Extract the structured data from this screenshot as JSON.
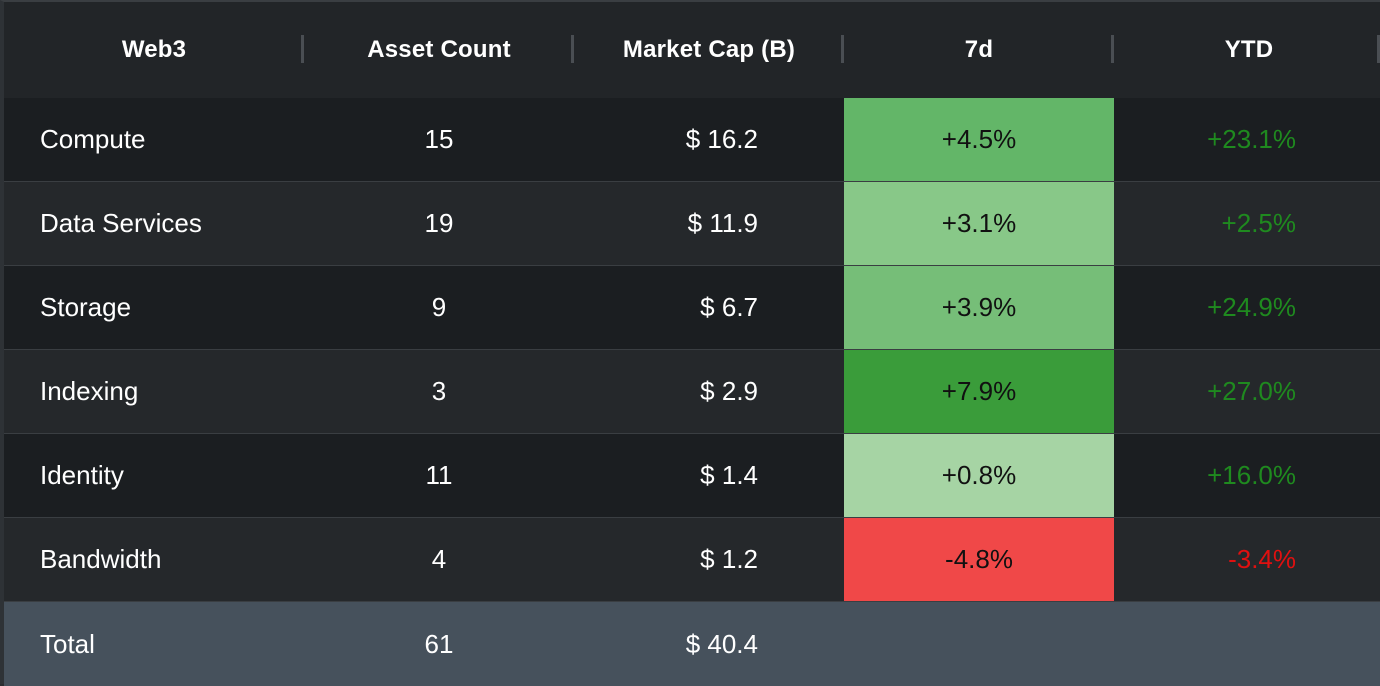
{
  "header": {
    "web3": "Web3",
    "asset_count": "Asset Count",
    "market_cap": "Market Cap (B)",
    "d7": "7d",
    "ytd": "YTD"
  },
  "rows": [
    {
      "name": "Compute",
      "count": "15",
      "cap": "$ 16.2",
      "d7": "+4.5%",
      "d7_color": "#63b668",
      "ytd": "+23.1%",
      "ytd_color": "#1f8a1f"
    },
    {
      "name": "Data Services",
      "count": "19",
      "cap": "$ 11.9",
      "d7": "+3.1%",
      "d7_color": "#88c888",
      "ytd": "+2.5%",
      "ytd_color": "#1f8a1f"
    },
    {
      "name": "Storage",
      "count": "9",
      "cap": "$ 6.7",
      "d7": "+3.9%",
      "d7_color": "#76be78",
      "ytd": "+24.9%",
      "ytd_color": "#1f8a1f"
    },
    {
      "name": "Indexing",
      "count": "3",
      "cap": "$ 2.9",
      "d7": "+7.9%",
      "d7_color": "#3a9c3a",
      "ytd": "+27.0%",
      "ytd_color": "#1f8a1f"
    },
    {
      "name": "Identity",
      "count": "11",
      "cap": "$ 1.4",
      "d7": "+0.8%",
      "d7_color": "#a6d4a4",
      "ytd": "+16.0%",
      "ytd_color": "#1f8a1f"
    },
    {
      "name": "Bandwidth",
      "count": "4",
      "cap": "$ 1.2",
      "d7": "-4.8%",
      "d7_color": "#f04848",
      "ytd": "-3.4%",
      "ytd_color": "#e01010"
    }
  ],
  "total": {
    "label": "Total",
    "count": "61",
    "cap": "$ 40.4"
  }
}
